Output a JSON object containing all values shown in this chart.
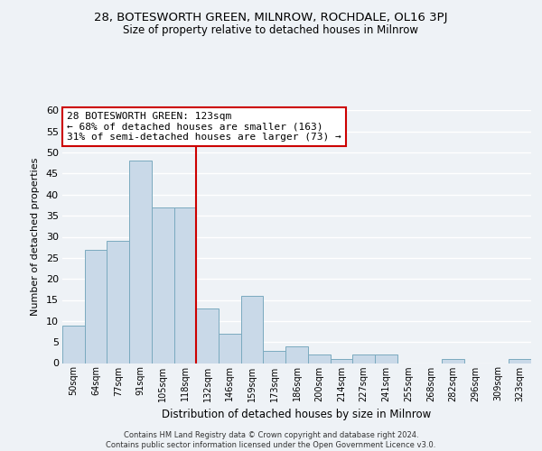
{
  "title": "28, BOTESWORTH GREEN, MILNROW, ROCHDALE, OL16 3PJ",
  "subtitle": "Size of property relative to detached houses in Milnrow",
  "xlabel": "Distribution of detached houses by size in Milnrow",
  "ylabel": "Number of detached properties",
  "bar_labels": [
    "50sqm",
    "64sqm",
    "77sqm",
    "91sqm",
    "105sqm",
    "118sqm",
    "132sqm",
    "146sqm",
    "159sqm",
    "173sqm",
    "186sqm",
    "200sqm",
    "214sqm",
    "227sqm",
    "241sqm",
    "255sqm",
    "268sqm",
    "282sqm",
    "296sqm",
    "309sqm",
    "323sqm"
  ],
  "bar_values": [
    9,
    27,
    29,
    48,
    37,
    37,
    13,
    7,
    16,
    3,
    4,
    2,
    1,
    2,
    2,
    0,
    0,
    1,
    0,
    0,
    1
  ],
  "bar_color": "#c9d9e8",
  "bar_edge_color": "#7aaabf",
  "vline_x": 5.5,
  "vline_color": "#cc0000",
  "ylim": [
    0,
    60
  ],
  "yticks": [
    0,
    5,
    10,
    15,
    20,
    25,
    30,
    35,
    40,
    45,
    50,
    55,
    60
  ],
  "annotation_title": "28 BOTESWORTH GREEN: 123sqm",
  "annotation_line1": "← 68% of detached houses are smaller (163)",
  "annotation_line2": "31% of semi-detached houses are larger (73) →",
  "annotation_box_color": "#ffffff",
  "annotation_box_edge": "#cc0000",
  "footer_line1": "Contains HM Land Registry data © Crown copyright and database right 2024.",
  "footer_line2": "Contains public sector information licensed under the Open Government Licence v3.0.",
  "background_color": "#eef2f6",
  "grid_color": "#ffffff"
}
